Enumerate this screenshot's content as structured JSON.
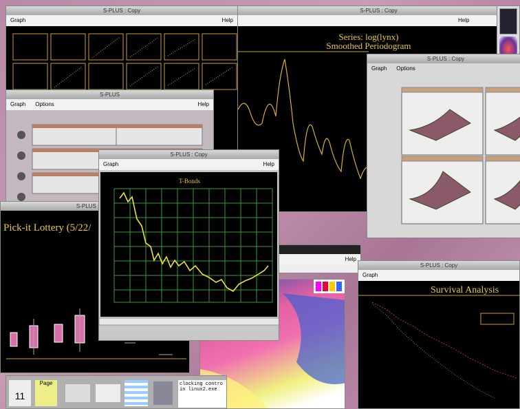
{
  "pairs_window": {
    "title": "S-PLUS : Copy",
    "menu": [
      "Graph",
      "Help"
    ]
  },
  "periodogram_window": {
    "title": "S-PLUS : Copy",
    "menu": [
      "Help"
    ],
    "plot_title": [
      "Series: log(lynx)",
      "Smoothed Periodogram"
    ]
  },
  "surface_window": {
    "title": "S-PLUS : Copy",
    "menu": [
      "Graph",
      "Options"
    ]
  },
  "trellis_window": {
    "title": "S-PLUS",
    "menu": [
      "Graph",
      "Options",
      "Help"
    ]
  },
  "lottery_window": {
    "title": "S-PLUS : Copy",
    "plot_title": "Pick-it Lottery (5/22/"
  },
  "bonds_window": {
    "title": "S-PLUS : Copy",
    "menu": [
      "Graph",
      "Help"
    ],
    "plot_title": "T-Bonds"
  },
  "small_window": {
    "menu": [
      "Help"
    ]
  },
  "survival_window": {
    "title": "S-PLUS : Copy",
    "menu": [
      "Graph"
    ],
    "plot_title": "Survival Analysis"
  },
  "taskbar": {
    "items": [
      "11",
      "Page"
    ],
    "console": "clocking contro\nin linux2.exe"
  }
}
